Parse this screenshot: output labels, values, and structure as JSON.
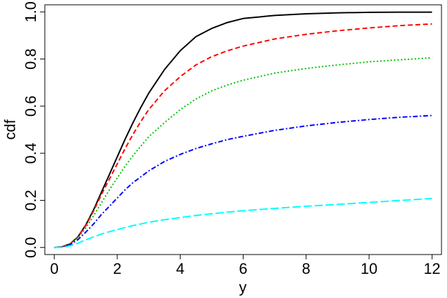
{
  "chart_data": {
    "type": "line",
    "xlabel": "y",
    "ylabel": "cdf",
    "xlim": [
      -0.3,
      12.3
    ],
    "ylim": [
      -0.03,
      1.03
    ],
    "x_ticks": [
      0,
      2,
      4,
      6,
      8,
      10,
      12
    ],
    "x_tick_labels": [
      "0",
      "2",
      "4",
      "6",
      "8",
      "10",
      "12"
    ],
    "y_ticks": [
      0.0,
      0.2,
      0.4,
      0.6,
      0.8,
      1.0
    ],
    "y_tick_labels": [
      "0.0",
      "0.2",
      "0.4",
      "0.6",
      "0.8",
      "1.0"
    ],
    "grid": false,
    "legend": "none",
    "x": [
      0,
      0.25,
      0.5,
      0.75,
      1,
      1.25,
      1.5,
      1.75,
      2,
      2.25,
      2.5,
      2.75,
      3,
      3.5,
      4,
      4.5,
      5,
      5.5,
      6,
      7,
      8,
      9,
      10,
      11,
      12
    ],
    "series": [
      {
        "color": "#000000",
        "line_style": "solid",
        "values": [
          0.0,
          0.003,
          0.015,
          0.045,
          0.095,
          0.16,
          0.235,
          0.31,
          0.385,
          0.46,
          0.53,
          0.595,
          0.655,
          0.755,
          0.835,
          0.895,
          0.93,
          0.955,
          0.972,
          0.985,
          0.992,
          0.996,
          0.998,
          0.999,
          0.999
        ]
      },
      {
        "color": "#ff0000",
        "line_style": "dashed",
        "values": [
          0.0,
          0.003,
          0.015,
          0.044,
          0.092,
          0.155,
          0.225,
          0.29,
          0.355,
          0.42,
          0.48,
          0.535,
          0.585,
          0.665,
          0.725,
          0.775,
          0.81,
          0.835,
          0.855,
          0.885,
          0.905,
          0.92,
          0.932,
          0.942,
          0.949
        ]
      },
      {
        "color": "#00c000",
        "line_style": "dotted",
        "values": [
          0.0,
          0.003,
          0.014,
          0.04,
          0.082,
          0.135,
          0.19,
          0.245,
          0.295,
          0.345,
          0.39,
          0.43,
          0.47,
          0.53,
          0.585,
          0.63,
          0.665,
          0.69,
          0.71,
          0.74,
          0.76,
          0.775,
          0.788,
          0.797,
          0.805
        ]
      },
      {
        "color": "#0000ff",
        "line_style": "dotdash",
        "values": [
          0.0,
          0.002,
          0.012,
          0.033,
          0.065,
          0.1,
          0.14,
          0.175,
          0.21,
          0.245,
          0.275,
          0.3,
          0.325,
          0.365,
          0.395,
          0.42,
          0.44,
          0.458,
          0.472,
          0.497,
          0.516,
          0.531,
          0.543,
          0.553,
          0.56
        ]
      },
      {
        "color": "#00ffff",
        "line_style": "longdash",
        "values": [
          0.0,
          0.001,
          0.007,
          0.018,
          0.032,
          0.045,
          0.057,
          0.067,
          0.076,
          0.085,
          0.093,
          0.1,
          0.107,
          0.118,
          0.127,
          0.136,
          0.143,
          0.15,
          0.156,
          0.166,
          0.175,
          0.183,
          0.191,
          0.2,
          0.208
        ]
      }
    ]
  }
}
